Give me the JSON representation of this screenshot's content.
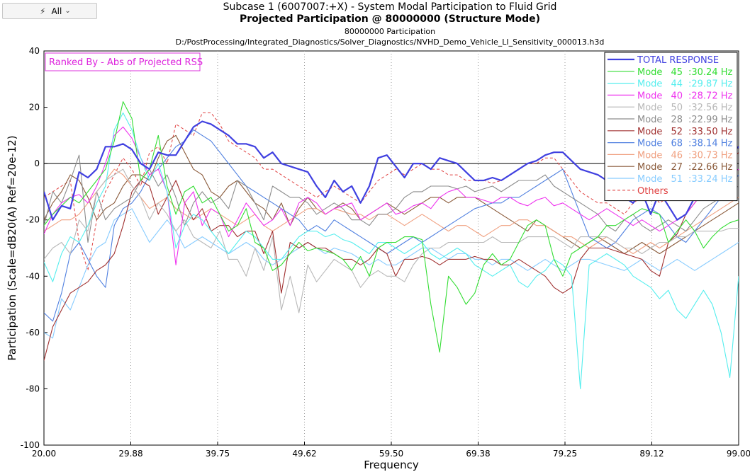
{
  "toolbar": {
    "filter_label": "All",
    "filter_icon": "lightning-icon",
    "dropdown_icon": "chevron-down-icon"
  },
  "chart_data": {
    "type": "line",
    "title": "Subcase 1 (6007007:+X) - System Modal Participation to Fluid Grid",
    "subtitle": "Projected Participation @ 80000000 (Structure Mode)",
    "subtitle2": "80000000 Participation",
    "subtitle3": "D:/PostProcessing/Integrated_Diagnostics/Solver_Diagnostics/NVHD_Demo_Vehicle_LI_Sensitivity_000013.h3d",
    "xlabel": "Frequency",
    "ylabel": "Participation (Scale=dB20(A) Ref=20e-12)",
    "xlim": [
      20.0,
      99.0
    ],
    "ylim": [
      -100,
      40
    ],
    "xticks": [
      "20.00",
      "29.88",
      "39.75",
      "49.62",
      "59.50",
      "69.38",
      "79.25",
      "89.12",
      "99.00"
    ],
    "yticks": [
      "40",
      "20",
      "0",
      "-20",
      "-40",
      "-60",
      "-80",
      "-100"
    ],
    "ranked_label": "Ranked By - Abs of Projected RSS",
    "grid": "x-only dotted",
    "legend_position": "top-right",
    "legend_entries": [
      {
        "mode": "",
        "value": "",
        "label": "TOTAL RESPONSE"
      },
      {
        "mode": "Mode",
        "value": "45",
        "label": ":30.24 Hz"
      },
      {
        "mode": "Mode",
        "value": "44",
        "label": ":29.87 Hz"
      },
      {
        "mode": "Mode",
        "value": "40",
        "label": ":28.72 Hz"
      },
      {
        "mode": "Mode",
        "value": "50",
        "label": ":32.56 Hz"
      },
      {
        "mode": "Mode",
        "value": "28",
        "label": ":22.99 Hz"
      },
      {
        "mode": "Mode",
        "value": "52",
        "label": ":33.50 Hz"
      },
      {
        "mode": "Mode",
        "value": "68",
        "label": ":38.14 Hz"
      },
      {
        "mode": "Mode",
        "value": "46",
        "label": ":30.73 Hz"
      },
      {
        "mode": "Mode",
        "value": "27",
        "label": ":22.66 Hz"
      },
      {
        "mode": "Mode",
        "value": "51",
        "label": ":33.24 Hz"
      },
      {
        "mode": "",
        "value": "",
        "label": "Others"
      }
    ],
    "x": [
      20,
      21,
      22,
      23,
      24,
      25,
      26,
      27,
      28,
      29,
      30,
      31,
      32,
      33,
      34,
      35,
      36,
      37,
      38,
      39,
      40,
      41,
      42,
      43,
      44,
      45,
      46,
      47,
      48,
      49,
      50,
      51,
      52,
      53,
      54,
      55,
      56,
      57,
      58,
      59,
      60,
      61,
      62,
      63,
      64,
      65,
      66,
      67,
      68,
      69,
      70,
      71,
      72,
      73,
      74,
      75,
      76,
      77,
      78,
      79,
      80,
      81,
      82,
      83,
      84,
      85,
      86,
      87,
      88,
      89,
      90,
      91,
      92,
      93,
      94,
      95,
      96,
      97,
      98,
      99
    ],
    "series": [
      {
        "name": "TOTAL RESPONSE",
        "color": "#4040e0",
        "width": 2.2,
        "dash": "",
        "values": [
          -10,
          -20,
          -15,
          -16,
          -3,
          -5,
          -2,
          6,
          6,
          7,
          5,
          0,
          -2,
          4,
          3,
          3,
          8,
          13,
          15,
          14,
          12,
          10,
          7,
          7,
          6,
          2,
          4,
          0,
          -1,
          -2,
          -3,
          -8,
          -12,
          -6,
          -10,
          -8,
          -14,
          -8,
          2,
          3,
          -1,
          -5,
          0,
          0,
          -2,
          2,
          1,
          0,
          -3,
          -6,
          -6,
          -5,
          -6,
          -4,
          -2,
          0,
          1,
          3,
          4,
          4,
          1,
          -2,
          -3,
          -4,
          -6,
          -9,
          -12,
          -14,
          -10,
          -18,
          -10,
          -15,
          -20,
          -18,
          -12,
          -5,
          -2,
          0,
          3,
          6
        ]
      },
      {
        "name": "Mode 45",
        "color": "#33dd33",
        "width": 1.1,
        "dash": "",
        "values": [
          -22,
          -18,
          -15,
          -12,
          -14,
          -10,
          -6,
          -2,
          8,
          22,
          16,
          -6,
          -2,
          10,
          -8,
          -18,
          -10,
          -8,
          -14,
          -12,
          -18,
          -24,
          -22,
          -16,
          -28,
          -30,
          -38,
          -36,
          -32,
          -28,
          -31,
          -30,
          -31,
          -32,
          -34,
          -38,
          -33,
          -40,
          -30,
          -28,
          -28,
          -26,
          -26,
          -27,
          -50,
          -67,
          -40,
          -44,
          -50,
          -46,
          -36,
          -32,
          -36,
          -34,
          -28,
          -22,
          -20,
          -22,
          -34,
          -40,
          -32,
          -30,
          -28,
          -26,
          -22,
          -22,
          -20,
          -18,
          -16,
          -17,
          -18,
          -28,
          -24,
          -20,
          -24,
          -30,
          -26,
          -23,
          -21,
          -20
        ]
      },
      {
        "name": "Mode 44",
        "color": "#55eeee",
        "width": 1.1,
        "dash": "",
        "values": [
          -35,
          -42,
          -32,
          -26,
          -28,
          -22,
          -14,
          -8,
          12,
          18,
          12,
          2,
          -6,
          0,
          -10,
          -30,
          -22,
          -18,
          -20,
          -24,
          -28,
          -32,
          -28,
          -24,
          -26,
          -30,
          -34,
          -34,
          -30,
          -26,
          -24,
          -24,
          -26,
          -25,
          -27,
          -28,
          -30,
          -32,
          -28,
          -28,
          -30,
          -32,
          -30,
          -28,
          -32,
          -34,
          -32,
          -30,
          -32,
          -36,
          -38,
          -40,
          -38,
          -36,
          -42,
          -44,
          -40,
          -38,
          -34,
          -36,
          -40,
          -80,
          -36,
          -34,
          -32,
          -34,
          -36,
          -40,
          -42,
          -44,
          -48,
          -45,
          -52,
          -55,
          -50,
          -45,
          -50,
          -60,
          -76,
          -40
        ]
      },
      {
        "name": "Mode 40",
        "color": "#ee33ee",
        "width": 1.1,
        "dash": "",
        "values": [
          -25,
          -18,
          -14,
          -12,
          -11,
          -14,
          -8,
          0,
          10,
          13,
          9,
          2,
          -4,
          -2,
          -10,
          -36,
          -14,
          -10,
          -22,
          -16,
          -18,
          -26,
          -20,
          -14,
          -18,
          -22,
          -20,
          -16,
          -22,
          -14,
          -12,
          -14,
          -18,
          -16,
          -15,
          -14,
          -20,
          -18,
          -16,
          -14,
          -18,
          -17,
          -15,
          -14,
          -16,
          -12,
          -10,
          -9,
          -12,
          -12,
          -13,
          -14,
          -12,
          -12,
          -14,
          -15,
          -13,
          -12,
          -15,
          -14,
          -16,
          -18,
          -20,
          -18,
          -16,
          -18,
          -20,
          -22,
          -20,
          -22,
          -24,
          -22,
          -20,
          -18,
          -14,
          -10,
          -8,
          -6,
          -4,
          -2
        ]
      },
      {
        "name": "Mode 50",
        "color": "#b8b8b8",
        "width": 1.1,
        "dash": "",
        "values": [
          -34,
          -30,
          -28,
          -32,
          -20,
          -24,
          -10,
          -6,
          -4,
          -2,
          -8,
          -12,
          -20,
          -14,
          -18,
          -24,
          -20,
          -26,
          -28,
          -30,
          -24,
          -34,
          -34,
          -40,
          -30,
          -38,
          -26,
          -52,
          -40,
          -53,
          -36,
          -42,
          -38,
          -34,
          -36,
          -38,
          -44,
          -40,
          -38,
          -40,
          -40,
          -42,
          -36,
          -32,
          -30,
          -30,
          -28,
          -28,
          -28,
          -28,
          -28,
          -26,
          -28,
          -28,
          -28,
          -26,
          -26,
          -26,
          -26,
          -28,
          -30,
          -26,
          -26,
          -26,
          -26,
          -28,
          -30,
          -30,
          -32,
          -30,
          -28,
          -28,
          -26,
          -26,
          -24,
          -24,
          -24,
          -24,
          -23,
          -23
        ]
      },
      {
        "name": "Mode 28",
        "color": "#8c8c8c",
        "width": 1.1,
        "dash": "",
        "values": [
          -22,
          -10,
          -14,
          -6,
          3,
          -28,
          -10,
          -20,
          -16,
          -14,
          -12,
          -6,
          -2,
          -8,
          -4,
          -12,
          -22,
          -14,
          -10,
          -14,
          -12,
          -16,
          -6,
          -8,
          -14,
          -20,
          -8,
          -10,
          -12,
          -12,
          -14,
          -18,
          -16,
          -14,
          -16,
          -20,
          -20,
          -22,
          -18,
          -18,
          -16,
          -12,
          -10,
          -10,
          -8,
          -8,
          -8,
          -9,
          -8,
          -10,
          -9,
          -8,
          -10,
          -8,
          -6,
          -6,
          -6,
          -4,
          -8,
          -10,
          -12,
          -14,
          -16,
          -18,
          -22,
          -24,
          -20,
          -18,
          -22,
          -24,
          -22,
          -20,
          -22,
          -24,
          -20,
          -16,
          -14,
          -12,
          -10,
          -8
        ]
      },
      {
        "name": "Mode 52",
        "color": "#a03030",
        "width": 1.1,
        "dash": "",
        "values": [
          -70,
          -58,
          -52,
          -46,
          -44,
          -42,
          -38,
          -36,
          -32,
          -22,
          -10,
          -6,
          -8,
          -18,
          -12,
          -6,
          -14,
          -20,
          -16,
          -24,
          -22,
          -22,
          -26,
          -24,
          -24,
          -32,
          -24,
          -46,
          -28,
          -30,
          -28,
          -30,
          -30,
          -32,
          -34,
          -34,
          -36,
          -34,
          -30,
          -32,
          -40,
          -34,
          -34,
          -33,
          -34,
          -36,
          -34,
          -34,
          -34,
          -33,
          -34,
          -34,
          -36,
          -36,
          -34,
          -36,
          -38,
          -40,
          -44,
          -46,
          -44,
          -34,
          -30,
          -30,
          -30,
          -31,
          -32,
          -33,
          -34,
          -38,
          -40,
          -28,
          -25,
          -18,
          -14,
          -10,
          -8,
          -6,
          -4,
          -2
        ]
      },
      {
        "name": "Mode 68",
        "color": "#5080e0",
        "width": 1.1,
        "dash": "",
        "values": [
          -53,
          -56,
          -46,
          -32,
          -28,
          -34,
          -40,
          -44,
          -22,
          -16,
          -14,
          -10,
          -4,
          -2,
          2,
          6,
          8,
          12,
          10,
          8,
          4,
          0,
          -4,
          -8,
          -10,
          -12,
          -14,
          -16,
          -18,
          -20,
          -24,
          -22,
          -24,
          -20,
          -22,
          -24,
          -26,
          -28,
          -30,
          -32,
          -30,
          -28,
          -26,
          -28,
          -26,
          -24,
          -22,
          -20,
          -18,
          -16,
          -15,
          -14,
          -14,
          -12,
          -12,
          -10,
          -8,
          -6,
          -4,
          -2,
          -10,
          -18,
          -26,
          -28,
          -30,
          -28,
          -24,
          -20,
          -18,
          -16,
          -18,
          -22,
          -26,
          -28,
          -24,
          -20,
          -16,
          -12,
          -8,
          -4
        ]
      },
      {
        "name": "Mode 46",
        "color": "#f0a080",
        "width": 1.1,
        "dash": "",
        "values": [
          -24,
          -22,
          -20,
          -20,
          -18,
          -14,
          -10,
          -6,
          -2,
          -4,
          -8,
          -12,
          -16,
          -14,
          -12,
          -16,
          -18,
          -20,
          -18,
          -16,
          -18,
          -20,
          -22,
          -20,
          -18,
          -22,
          -24,
          -22,
          -20,
          -18,
          -16,
          -16,
          -18,
          -16,
          -17,
          -18,
          -18,
          -20,
          -18,
          -18,
          -20,
          -22,
          -20,
          -18,
          -20,
          -22,
          -24,
          -22,
          -22,
          -24,
          -26,
          -24,
          -22,
          -22,
          -20,
          -20,
          -22,
          -22,
          -24,
          -26,
          -26,
          -28,
          -30,
          -28,
          -26,
          -28,
          -30,
          -32,
          -30,
          -28,
          -30,
          -28,
          -26,
          -24,
          -22,
          -20,
          -18,
          -16,
          -14,
          -12
        ]
      },
      {
        "name": "Mode 27",
        "color": "#8a5a3a",
        "width": 1.1,
        "dash": "",
        "values": [
          -20,
          -14,
          -10,
          -4,
          -6,
          -12,
          -20,
          -16,
          -14,
          -8,
          -4,
          -4,
          -6,
          2,
          8,
          10,
          4,
          -2,
          -4,
          -10,
          -12,
          -8,
          -6,
          -10,
          -14,
          -16,
          -20,
          -14,
          -22,
          -16,
          -12,
          -16,
          -18,
          -16,
          -14,
          -16,
          -20,
          -18,
          -16,
          -14,
          -16,
          -18,
          -16,
          -14,
          -12,
          -12,
          -14,
          -12,
          -12,
          -12,
          -14,
          -16,
          -18,
          -20,
          -22,
          -24,
          -20,
          -22,
          -24,
          -26,
          -28,
          -30,
          -28,
          -26,
          -28,
          -30,
          -32,
          -30,
          -28,
          -30,
          -32,
          -30,
          -28,
          -26,
          -24,
          -22,
          -20,
          -18,
          -16,
          -14
        ]
      },
      {
        "name": "Mode 51",
        "color": "#88ccff",
        "width": 1.1,
        "dash": "",
        "values": [
          -60,
          -62,
          -48,
          -52,
          -44,
          -36,
          -30,
          -28,
          -20,
          -18,
          -16,
          -22,
          -28,
          -24,
          -20,
          -24,
          -30,
          -28,
          -26,
          -28,
          -30,
          -32,
          -30,
          -28,
          -30,
          -34,
          -36,
          -34,
          -32,
          -30,
          -28,
          -30,
          -32,
          -30,
          -31,
          -32,
          -34,
          -36,
          -34,
          -36,
          -36,
          -34,
          -32,
          -30,
          -30,
          -32,
          -34,
          -32,
          -32,
          -34,
          -34,
          -36,
          -34,
          -34,
          -36,
          -38,
          -36,
          -34,
          -36,
          -38,
          -36,
          -34,
          -34,
          -35,
          -36,
          -37,
          -38,
          -36,
          -34,
          -36,
          -38,
          -36,
          -34,
          -36,
          -38,
          -36,
          -34,
          -32,
          -30,
          -28
        ]
      },
      {
        "name": "Others",
        "color": "#e04040",
        "width": 1.0,
        "dash": "4,3",
        "values": [
          -12,
          -10,
          -8,
          -6,
          -28,
          -38,
          -20,
          -10,
          -4,
          2,
          -2,
          -8,
          4,
          6,
          0,
          14,
          12,
          10,
          18,
          18,
          14,
          8,
          6,
          4,
          2,
          -2,
          -2,
          -4,
          -6,
          -8,
          -10,
          -12,
          -10,
          -8,
          -10,
          -12,
          -14,
          -10,
          -6,
          -4,
          -2,
          -4,
          -2,
          0,
          -2,
          -2,
          -4,
          -4,
          -6,
          -6,
          -6,
          -7,
          -6,
          -4,
          -2,
          0,
          0,
          2,
          2,
          -2,
          -6,
          -10,
          -12,
          -14,
          -14,
          -16,
          -18,
          -14,
          -12,
          -10,
          -14,
          -12,
          -10,
          -8,
          -10,
          -12,
          -8,
          -4,
          0,
          4
        ]
      }
    ]
  }
}
